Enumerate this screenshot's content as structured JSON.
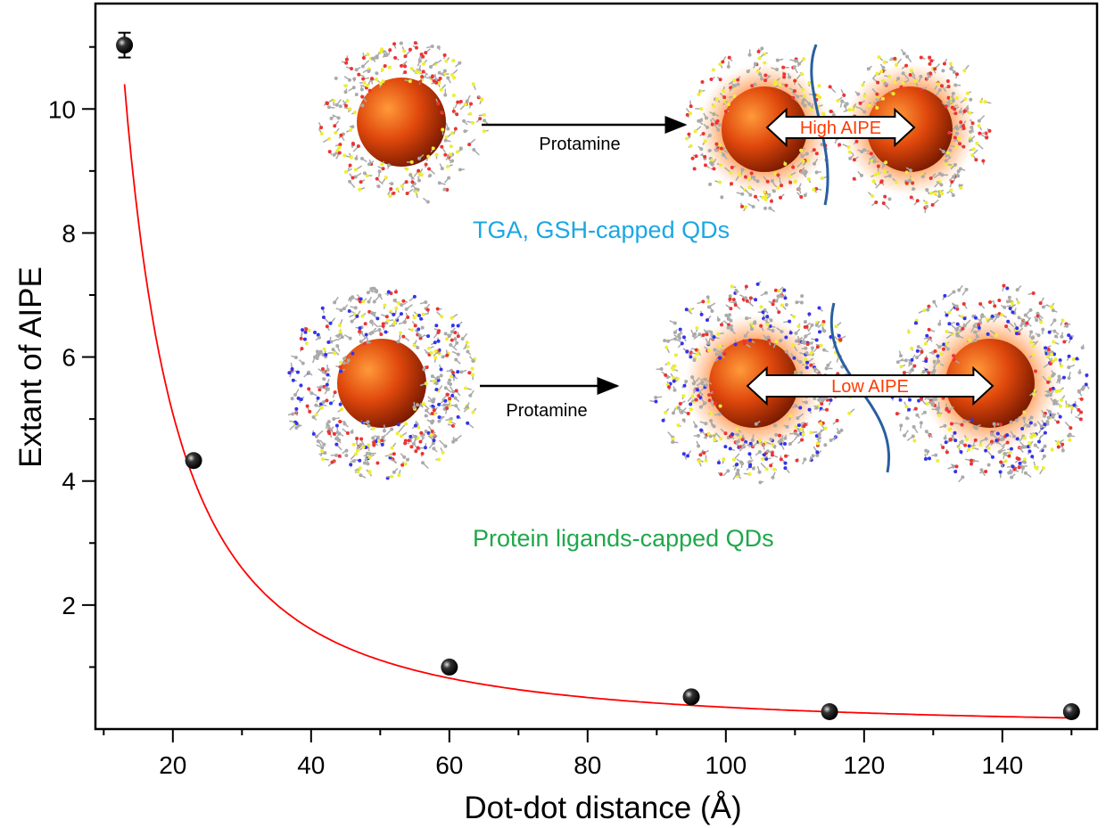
{
  "chart_data": {
    "type": "scatter",
    "title": "",
    "xlabel": "Dot-dot distance (Å)",
    "ylabel": "Extant of AIPE",
    "xlim": [
      8.8,
      153.7
    ],
    "ylim": [
      0,
      11.7
    ],
    "xticks": [
      20,
      40,
      60,
      80,
      100,
      120,
      140
    ],
    "yticks": [
      2,
      4,
      6,
      8,
      10
    ],
    "grid": false,
    "series": [
      {
        "name": "data",
        "x": [
          13,
          23,
          60,
          95,
          115,
          150
        ],
        "y": [
          11.03,
          4.33,
          1.0,
          0.52,
          0.28,
          0.28
        ],
        "yerr": [
          0.2,
          0,
          0,
          0,
          0,
          0
        ],
        "color": "#000000"
      },
      {
        "name": "fit",
        "type": "line",
        "model": "y = 10.4*(x/13)^-1.66",
        "x_range": [
          13,
          150
        ],
        "color": "#ff0000"
      }
    ],
    "annotations": {
      "protamine_top": "Protamine",
      "high_aipe": "High AIPE",
      "tga_label": "TGA, GSH-capped QDs",
      "protamine_bottom": "Protamine",
      "low_aipe": "Low AIPE",
      "protein_label": "Protein ligands-capped QDs"
    },
    "colors": {
      "tga": "#1aa7e3",
      "protein": "#1ea84a",
      "aipe_text": "#ff3b00",
      "qd": "#e0480c"
    }
  }
}
